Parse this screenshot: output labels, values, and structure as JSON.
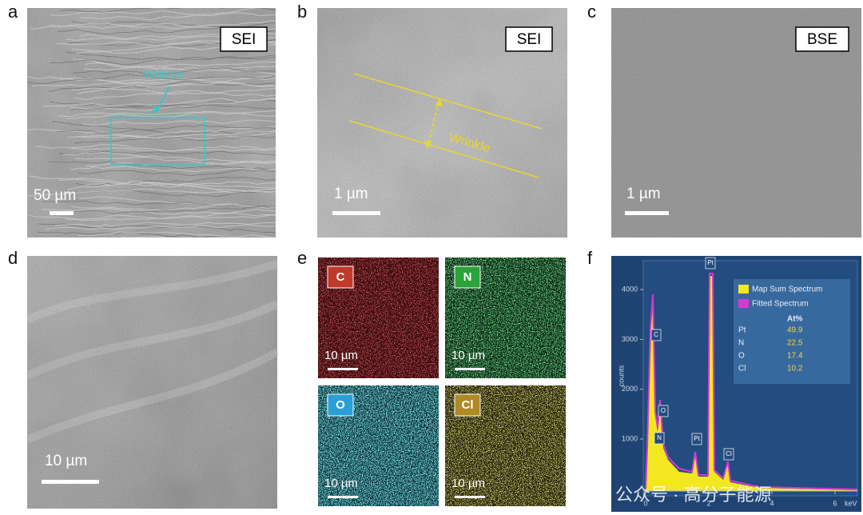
{
  "panels": {
    "a": {
      "letter": "a",
      "badge": "SEI",
      "scale_bar": "50 µm",
      "annotation": "Wrinkle"
    },
    "b": {
      "letter": "b",
      "badge": "SEI",
      "scale_bar": "1 µm",
      "annotation": "Wrinkle"
    },
    "c": {
      "letter": "c",
      "badge": "BSE",
      "scale_bar": "1 µm"
    },
    "d": {
      "letter": "d",
      "scale_bar": "10 µm"
    },
    "e": {
      "letter": "e",
      "maps": [
        {
          "element": "C",
          "scale_bar": "10 µm"
        },
        {
          "element": "N",
          "scale_bar": "10 µm"
        },
        {
          "element": "O",
          "scale_bar": "10 µm"
        },
        {
          "element": "Cl",
          "scale_bar": "10 µm"
        }
      ]
    },
    "f": {
      "letter": "f",
      "y_axis_label": "counts",
      "y_ticks": [
        "1000",
        "2000",
        "3000",
        "4000"
      ],
      "x_ticks": [
        "0",
        "2",
        "4",
        "6"
      ],
      "x_unit": "keV",
      "peak_labels": [
        "C",
        "O",
        "N",
        "Pt",
        "Pt",
        "Cl"
      ],
      "legend": [
        "Map Sum Spectrum",
        "Fitted Spectrum"
      ],
      "table": {
        "header": "At%",
        "rows": [
          [
            "Pt",
            "49.9"
          ],
          [
            "N",
            "22.5"
          ],
          [
            "O",
            "17.4"
          ],
          [
            "Cl",
            "10.2"
          ]
        ]
      }
    }
  },
  "watermark": "公众号 · 高分子能源"
}
